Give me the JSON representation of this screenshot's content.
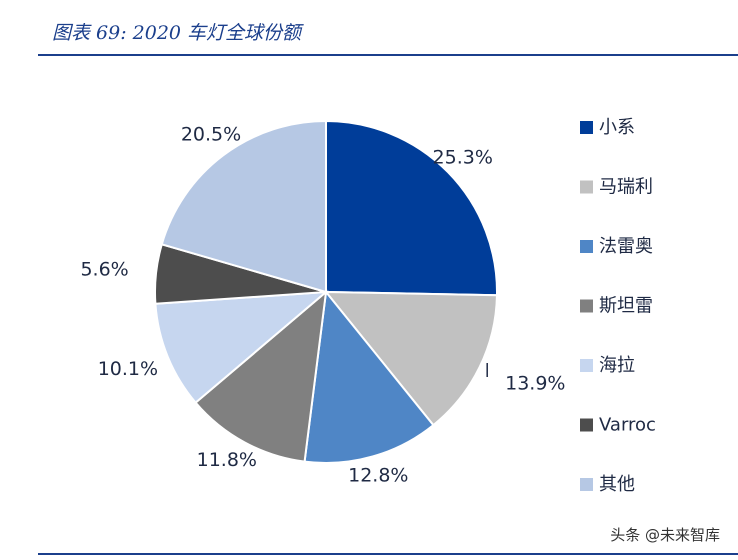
{
  "figure": {
    "title": "图表 69:  2020 车灯全球份额"
  },
  "chart_data": {
    "type": "pie",
    "categories": [
      "小系",
      "马瑞利",
      "法雷奥",
      "斯坦雷",
      "海拉",
      "Varroc",
      "其他"
    ],
    "values": [
      25.3,
      13.9,
      12.8,
      11.8,
      10.1,
      5.6,
      20.5
    ],
    "labels": [
      "25.3%",
      "13.9%",
      "12.8%",
      "11.8%",
      "10.1%",
      "5.6%",
      "20.5%"
    ],
    "colors": [
      "#003d99",
      "#c1c1c1",
      "#4f86c6",
      "#808080",
      "#c6d6ef",
      "#4d4d4d",
      "#b6c8e4"
    ],
    "legend_position": "right",
    "start": "12 o'clock",
    "direction": "clockwise"
  },
  "watermark": "头条 @未来智库"
}
